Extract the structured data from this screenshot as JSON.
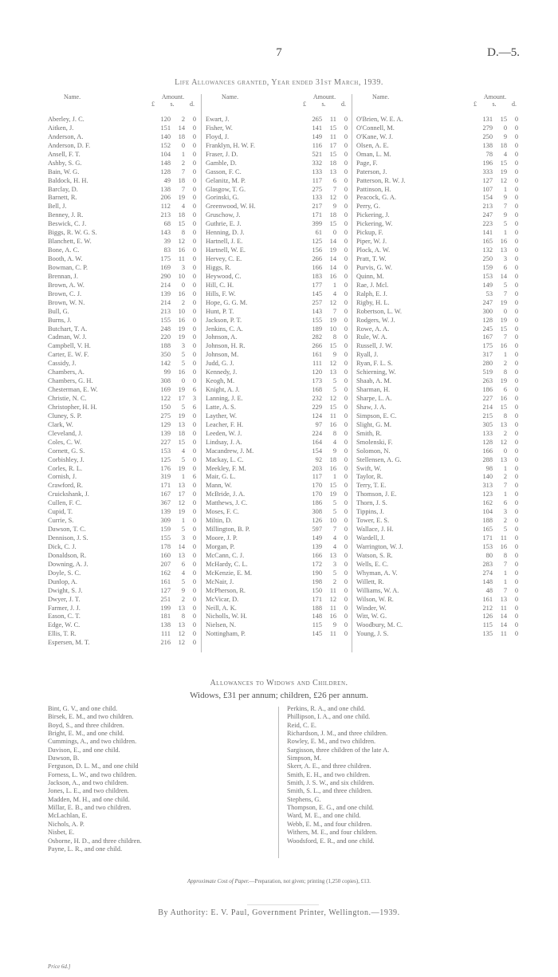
{
  "header": {
    "page_number": "7",
    "doc_ref": "D.—5."
  },
  "table": {
    "title": "Life Allowances granted, Year ended 31st March, 1939.",
    "col_name": "Name.",
    "col_amount": "Amount.",
    "units": [
      "£",
      "s.",
      "d."
    ],
    "columns": [
      [
        [
          "Aberley, J. C.",
          "120",
          "2",
          "0"
        ],
        [
          "Aitken, J.",
          "151",
          "14",
          "0"
        ],
        [
          "Anderson, A.",
          "140",
          "18",
          "0"
        ],
        [
          "Anderson, D. F.",
          "152",
          "0",
          "0"
        ],
        [
          "Ansell, F. T.",
          "104",
          "1",
          "0"
        ],
        [
          "Ashby, S. G.",
          "148",
          "2",
          "0"
        ],
        [
          "Bain, W. G.",
          "128",
          "7",
          "0"
        ],
        [
          "Baldock, H. H.",
          "49",
          "18",
          "0"
        ],
        [
          "Barclay, D.",
          "138",
          "7",
          "0"
        ],
        [
          "Barnett, R.",
          "206",
          "19",
          "0"
        ],
        [
          "Bell, J.",
          "112",
          "4",
          "0"
        ],
        [
          "Benney, J. R.",
          "213",
          "18",
          "0"
        ],
        [
          "Beswick, C. J.",
          "68",
          "15",
          "0"
        ],
        [
          "Biggs, R. W. G. S.",
          "143",
          "8",
          "0"
        ],
        [
          "Blanchett, E. W.",
          "39",
          "12",
          "0"
        ],
        [
          "Bone, A. C.",
          "83",
          "16",
          "0"
        ],
        [
          "Booth, A. W.",
          "175",
          "11",
          "0"
        ],
        [
          "Bowman, C. P.",
          "169",
          "3",
          "0"
        ],
        [
          "Brennan, J.",
          "290",
          "10",
          "0"
        ],
        [
          "Brown, A. W.",
          "214",
          "0",
          "0"
        ],
        [
          "Brown, C. J.",
          "139",
          "16",
          "0"
        ],
        [
          "Brown, W. N.",
          "214",
          "2",
          "0"
        ],
        [
          "Bull, G.",
          "213",
          "10",
          "0"
        ],
        [
          "Burns, J.",
          "155",
          "16",
          "0"
        ],
        [
          "Butchart, T. A.",
          "248",
          "19",
          "0"
        ],
        [
          "Cadman, W. J.",
          "220",
          "19",
          "0"
        ],
        [
          "Campbell, V. H.",
          "188",
          "3",
          "0"
        ],
        [
          "Carter, E. W. F.",
          "350",
          "5",
          "0"
        ],
        [
          "Cassidy, J.",
          "142",
          "5",
          "0"
        ],
        [
          "Chambers, A.",
          "99",
          "16",
          "0"
        ],
        [
          "Chambers, G. H.",
          "308",
          "0",
          "0"
        ],
        [
          "Chesterman, E. W.",
          "169",
          "19",
          "6"
        ],
        [
          "Christie, N. C.",
          "122",
          "17",
          "3"
        ],
        [
          "Christopher, H. H.",
          "150",
          "5",
          "6"
        ],
        [
          "Cluney, S. P.",
          "275",
          "19",
          "0"
        ],
        [
          "Clark, W.",
          "129",
          "13",
          "0"
        ],
        [
          "Cleveland, J.",
          "139",
          "18",
          "0"
        ],
        [
          "Coles, C. W.",
          "227",
          "15",
          "0"
        ],
        [
          "Cornett, G. S.",
          "153",
          "4",
          "0"
        ],
        [
          "Corbishley, J.",
          "125",
          "5",
          "0"
        ],
        [
          "Corles, R. L.",
          "176",
          "19",
          "0"
        ],
        [
          "Cornish, J.",
          "319",
          "1",
          "6"
        ],
        [
          "Crawford, R.",
          "171",
          "13",
          "0"
        ],
        [
          "Cruickshank, J.",
          "167",
          "17",
          "0"
        ],
        [
          "Cullen, F. C.",
          "367",
          "12",
          "0"
        ],
        [
          "Cupid, T.",
          "139",
          "19",
          "0"
        ],
        [
          "Currie, S.",
          "309",
          "1",
          "0"
        ],
        [
          "Dawson, T. C.",
          "159",
          "5",
          "0"
        ],
        [
          "Dennison, J. S.",
          "155",
          "3",
          "0"
        ],
        [
          "Dick, C. J.",
          "178",
          "14",
          "0"
        ],
        [
          "Donaldson, R.",
          "160",
          "13",
          "0"
        ],
        [
          "Downing, A. J.",
          "207",
          "6",
          "0"
        ],
        [
          "Doyle, S. C.",
          "162",
          "4",
          "0"
        ],
        [
          "Dunlop, A.",
          "161",
          "5",
          "0"
        ],
        [
          "Dwight, S. J.",
          "127",
          "9",
          "0"
        ],
        [
          "Dwyer, J. T.",
          "251",
          "2",
          "0"
        ],
        [
          "Farmer, J. J.",
          "199",
          "13",
          "0"
        ],
        [
          "Eason, C. T.",
          "181",
          "8",
          "0"
        ],
        [
          "Edge, W. C.",
          "138",
          "13",
          "0"
        ],
        [
          "Ellis, T. R.",
          "111",
          "12",
          "0"
        ],
        [
          "Espersen, M. T.",
          "216",
          "12",
          "0"
        ]
      ],
      [
        [
          "Ewart, J.",
          "265",
          "11",
          "0"
        ],
        [
          "Fisher, W.",
          "141",
          "15",
          "0"
        ],
        [
          "Floyd, J.",
          "149",
          "11",
          "0"
        ],
        [
          "Franklyn, H. W. F.",
          "116",
          "17",
          "0"
        ],
        [
          "Fraser, J. D.",
          "521",
          "15",
          "0"
        ],
        [
          "Gamble, D.",
          "332",
          "18",
          "0"
        ],
        [
          "Gasson, F. C.",
          "133",
          "13",
          "0"
        ],
        [
          "Gelanitz, M. P.",
          "117",
          "6",
          "0"
        ],
        [
          "Glasgow, T. G.",
          "275",
          "7",
          "0"
        ],
        [
          "Gorinski, G.",
          "133",
          "12",
          "0"
        ],
        [
          "Greenwood, W. H.",
          "217",
          "9",
          "0"
        ],
        [
          "Gruschow, J.",
          "171",
          "18",
          "0"
        ],
        [
          "Guthrie, E. J.",
          "399",
          "15",
          "0"
        ],
        [
          "Henning, D. J.",
          "61",
          "0",
          "0"
        ],
        [
          "Hartnell, J. E.",
          "125",
          "14",
          "0"
        ],
        [
          "Hartnell, W. E.",
          "156",
          "19",
          "0"
        ],
        [
          "Hervey, C. E.",
          "266",
          "14",
          "0"
        ],
        [
          "Higgs, R.",
          "166",
          "14",
          "0"
        ],
        [
          "Heywood, C.",
          "183",
          "16",
          "0"
        ],
        [
          "Hill, C. H.",
          "177",
          "1",
          "0"
        ],
        [
          "Hills, F. W.",
          "145",
          "4",
          "0"
        ],
        [
          "Hope, G. G. M.",
          "257",
          "12",
          "0"
        ],
        [
          "Hunt, P. T.",
          "143",
          "7",
          "0"
        ],
        [
          "Jackson, P. T.",
          "155",
          "19",
          "0"
        ],
        [
          "Jenkins, C. A.",
          "189",
          "10",
          "0"
        ],
        [
          "Johnson, A.",
          "282",
          "8",
          "0"
        ],
        [
          "Johnson, H. R.",
          "266",
          "15",
          "0"
        ],
        [
          "Johnson, M.",
          "161",
          "9",
          "0"
        ],
        [
          "Judd, G. J.",
          "111",
          "12",
          "0"
        ],
        [
          "Kennedy, J.",
          "120",
          "13",
          "0"
        ],
        [
          "Keogh, M.",
          "173",
          "5",
          "0"
        ],
        [
          "Knight, A. J.",
          "168",
          "5",
          "0"
        ],
        [
          "Lanning, J. E.",
          "232",
          "12",
          "0"
        ],
        [
          "Latte, A. S.",
          "229",
          "15",
          "0"
        ],
        [
          "Layther, W.",
          "124",
          "11",
          "0"
        ],
        [
          "Leacher, F. H.",
          "97",
          "16",
          "0"
        ],
        [
          "Leeden, W. J.",
          "224",
          "8",
          "0"
        ],
        [
          "Lindsay, J. A.",
          "164",
          "4",
          "0"
        ],
        [
          "Macandrew, J. M.",
          "154",
          "9",
          "0"
        ],
        [
          "Mackay, L. C.",
          "92",
          "18",
          "0"
        ],
        [
          "Meekley, F. M.",
          "203",
          "16",
          "0"
        ],
        [
          "Mair, G. L.",
          "117",
          "1",
          "0"
        ],
        [
          "Mann, W.",
          "170",
          "15",
          "0"
        ],
        [
          "McBride, J. A.",
          "170",
          "19",
          "0"
        ],
        [
          "Matthews, J. C.",
          "186",
          "5",
          "0"
        ],
        [
          "Moses, F. C.",
          "308",
          "5",
          "0"
        ],
        [
          "Miltin, D.",
          "126",
          "10",
          "0"
        ],
        [
          "Millington, B. P.",
          "597",
          "7",
          "0"
        ],
        [
          "Moore, J. P.",
          "149",
          "4",
          "0"
        ],
        [
          "Morgan, P.",
          "139",
          "4",
          "0"
        ],
        [
          "McCann, C. J.",
          "166",
          "13",
          "0"
        ],
        [
          "McHardy, C. L.",
          "172",
          "3",
          "0"
        ],
        [
          "McKenzie, E. M.",
          "190",
          "5",
          "0"
        ],
        [
          "McNair, J.",
          "198",
          "2",
          "0"
        ],
        [
          "McPherson, R.",
          "150",
          "11",
          "0"
        ],
        [
          "McVicar, D.",
          "171",
          "12",
          "0"
        ],
        [
          "Neill, A. K.",
          "188",
          "11",
          "0"
        ],
        [
          "Nicholls, W. H.",
          "148",
          "16",
          "0"
        ],
        [
          "Nielsen, N.",
          "115",
          "9",
          "0"
        ],
        [
          "Nottingham, P.",
          "145",
          "11",
          "0"
        ]
      ],
      [
        [
          "O'Brien, W. E. A.",
          "131",
          "15",
          "0"
        ],
        [
          "O'Connell, M.",
          "279",
          "0",
          "0"
        ],
        [
          "O'Kane, W. J.",
          "250",
          "9",
          "0"
        ],
        [
          "Olsen, A. E.",
          "138",
          "18",
          "0"
        ],
        [
          "Oman, L. M.",
          "78",
          "4",
          "0"
        ],
        [
          "Page, F.",
          "196",
          "15",
          "0"
        ],
        [
          "Paterson, J.",
          "333",
          "19",
          "0"
        ],
        [
          "Patterson, R. W. J.",
          "127",
          "12",
          "0"
        ],
        [
          "Pattinson, H.",
          "107",
          "1",
          "0"
        ],
        [
          "Peacock, G. A.",
          "154",
          "9",
          "0"
        ],
        [
          "Perry, G.",
          "213",
          "7",
          "0"
        ],
        [
          "Pickering, J.",
          "247",
          "9",
          "0"
        ],
        [
          "Pickering, W.",
          "223",
          "5",
          "0"
        ],
        [
          "Pickup, F.",
          "141",
          "1",
          "0"
        ],
        [
          "Piper, W. J.",
          "165",
          "16",
          "0"
        ],
        [
          "Plock, A. W.",
          "132",
          "13",
          "0"
        ],
        [
          "Pratt, T. W.",
          "250",
          "3",
          "0"
        ],
        [
          "Purvis, G. W.",
          "159",
          "6",
          "0"
        ],
        [
          "Quinn, M.",
          "153",
          "14",
          "0"
        ],
        [
          "Rae, J. Mcl.",
          "149",
          "5",
          "0"
        ],
        [
          "Ralph, E. J.",
          "53",
          "7",
          "0"
        ],
        [
          "Rigby, H. L.",
          "247",
          "19",
          "0"
        ],
        [
          "Robertson, L. W.",
          "300",
          "0",
          "0"
        ],
        [
          "Rodgers, W. J.",
          "128",
          "19",
          "0"
        ],
        [
          "Rowe, A. A.",
          "245",
          "15",
          "0"
        ],
        [
          "Rule, W. A.",
          "167",
          "7",
          "0"
        ],
        [
          "Russell, J. W.",
          "175",
          "16",
          "0"
        ],
        [
          "Ryall, J.",
          "317",
          "1",
          "0"
        ],
        [
          "Ryan, F. L. S.",
          "280",
          "2",
          "0"
        ],
        [
          "Schierning, W.",
          "519",
          "8",
          "0"
        ],
        [
          "Shaab, A. M.",
          "263",
          "19",
          "0"
        ],
        [
          "Sharman, H.",
          "186",
          "6",
          "0"
        ],
        [
          "Sharpe, L. A.",
          "227",
          "16",
          "0"
        ],
        [
          "Shaw, J. A.",
          "214",
          "15",
          "0"
        ],
        [
          "Simpson, E. C.",
          "215",
          "8",
          "0"
        ],
        [
          "Slight, G. M.",
          "305",
          "13",
          "0"
        ],
        [
          "Smith, R.",
          "133",
          "2",
          "0"
        ],
        [
          "Smolenski, F.",
          "128",
          "12",
          "0"
        ],
        [
          "Solomon, N.",
          "166",
          "0",
          "0"
        ],
        [
          "Stellensen, A. G.",
          "288",
          "13",
          "0"
        ],
        [
          "Swift, W.",
          "98",
          "1",
          "0"
        ],
        [
          "Taylor, R.",
          "140",
          "2",
          "0"
        ],
        [
          "Terry, T. E.",
          "313",
          "7",
          "0"
        ],
        [
          "Thomson, J. E.",
          "123",
          "1",
          "0"
        ],
        [
          "Thorn, J. S.",
          "162",
          "6",
          "0"
        ],
        [
          "Tippins, J.",
          "104",
          "3",
          "0"
        ],
        [
          "Tower, E. S.",
          "188",
          "2",
          "0"
        ],
        [
          "Wallace, J. H.",
          "165",
          "5",
          "0"
        ],
        [
          "Wardell, J.",
          "171",
          "11",
          "0"
        ],
        [
          "Warrington, W. J.",
          "153",
          "16",
          "0"
        ],
        [
          "Watson, S. R.",
          "80",
          "8",
          "0"
        ],
        [
          "Wells, E. C.",
          "283",
          "7",
          "0"
        ],
        [
          "Whyman, A. V.",
          "274",
          "1",
          "0"
        ],
        [
          "Willett, R.",
          "148",
          "1",
          "0"
        ],
        [
          "Williams, W. A.",
          "48",
          "7",
          "0"
        ],
        [
          "Wilson, W. R.",
          "161",
          "13",
          "0"
        ],
        [
          "Winder, W.",
          "212",
          "11",
          "0"
        ],
        [
          "Witt, W. G.",
          "126",
          "14",
          "0"
        ],
        [
          "Woodbury, M. C.",
          "115",
          "14",
          "0"
        ],
        [
          "Young, J. S.",
          "135",
          "11",
          "0"
        ]
      ]
    ]
  },
  "widows": {
    "title": "Allowances to Widows and Children.",
    "subtitle": "Widows, £31 per annum; children, £26 per annum.",
    "left": [
      "Bint, G. V., and one child.",
      "Birsek, E. M., and two children.",
      "Boyd, S., and three children.",
      "Bright, E. M., and one child.",
      "Cummings, A., and two children.",
      "Davison, E., and one child.",
      "Dawson, B.",
      "Ferguson, D. L. M., and one child",
      "Forness, L. W., and two children.",
      "Jackson, A., and two children.",
      "Jones, L. E., and two children.",
      "Madden, M. H., and one child.",
      "Millar, E. B., and two children.",
      "McLachlan, E.",
      "Nichols, A. P.",
      "Nisbet, E.",
      "Osborne, H. D., and three children.",
      "Payne, L. R., and one child."
    ],
    "right": [
      "Perkins, R. A., and one child.",
      "Phillipson, I. A., and one child.",
      "Reid, C. E.",
      "Richardson, J. M., and three children.",
      "Rowley, E. M., and two children.",
      "Sargisson, three children of the late A.",
      "Simpson, M.",
      "Skerr, A. E., and three children.",
      "Smith, E. H., and two children.",
      "Smith, J. S. W., and six children.",
      "Smith, S. L., and three children.",
      "Stephens, G.",
      "Thompson, E. G., and one child.",
      "Ward, M. E., and one child.",
      "Webb, E. M., and four children.",
      "Withers, M. E., and four children.",
      "Woodsford, E. R., and one child."
    ]
  },
  "footer": {
    "cost_label": "Approximate Cost of Paper.",
    "cost_text": "—Preparation, not given; printing (1,250 copies), £13.",
    "authority": "By Authority: E. V. Paul, Government Printer, Wellington.—1939.",
    "price": "Price 6d.]"
  }
}
